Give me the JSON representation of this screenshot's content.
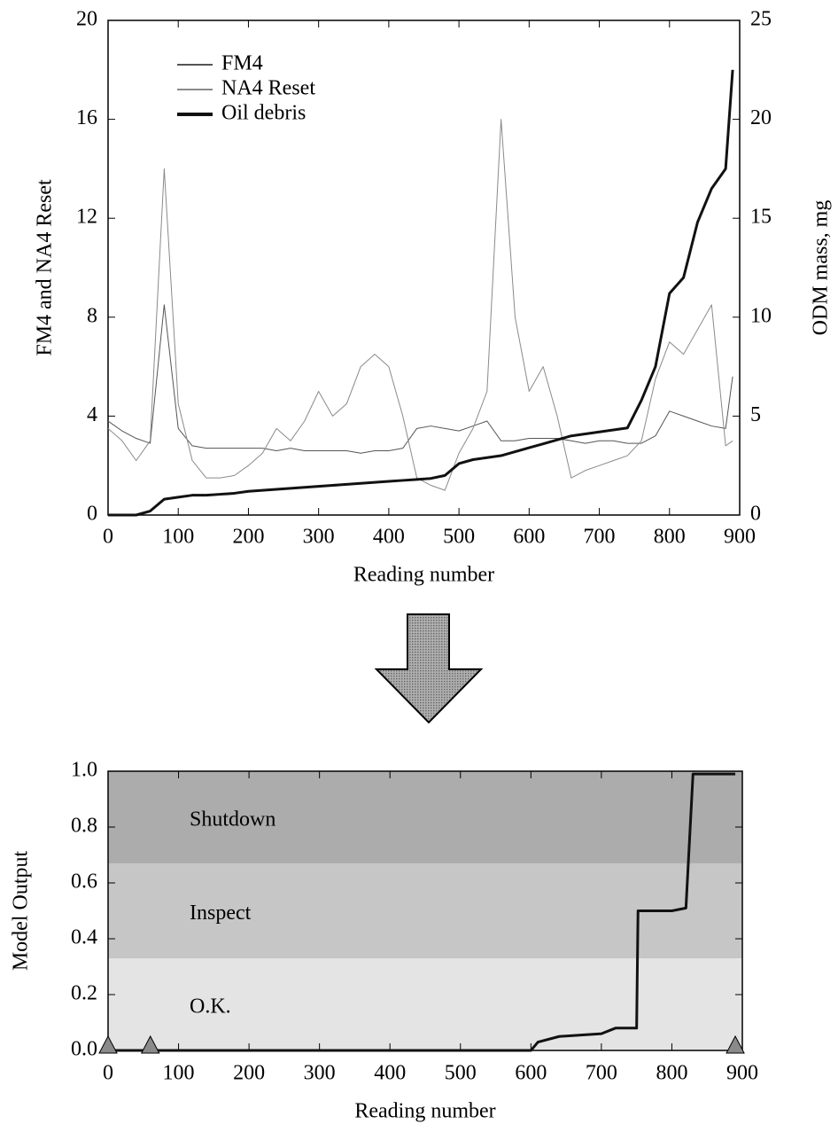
{
  "chart_data": [
    {
      "type": "line",
      "xlabel": "Reading number",
      "ylabel": "FM4 and NA4 Reset",
      "y2label": "ODM mass, mg",
      "x": [
        0,
        20,
        40,
        60,
        80,
        100,
        120,
        140,
        160,
        180,
        200,
        220,
        240,
        260,
        280,
        300,
        320,
        340,
        360,
        380,
        400,
        420,
        440,
        460,
        480,
        500,
        520,
        540,
        560,
        580,
        600,
        620,
        640,
        660,
        680,
        700,
        720,
        740,
        760,
        780,
        800,
        820,
        840,
        860,
        880,
        890
      ],
      "series": [
        {
          "name": "FM4",
          "color": "#555555",
          "width": 1,
          "values": [
            3.8,
            3.4,
            3.1,
            2.9,
            8.5,
            3.5,
            2.8,
            2.7,
            2.7,
            2.7,
            2.7,
            2.7,
            2.6,
            2.7,
            2.6,
            2.6,
            2.6,
            2.6,
            2.5,
            2.6,
            2.6,
            2.7,
            3.5,
            3.6,
            3.5,
            3.4,
            3.6,
            3.8,
            3.0,
            3.0,
            3.1,
            3.1,
            3.1,
            3.0,
            2.9,
            3.0,
            3.0,
            2.9,
            2.9,
            3.2,
            4.2,
            4.0,
            3.8,
            3.6,
            3.5,
            5.6
          ]
        },
        {
          "name": "NA4 Reset",
          "color": "#8a8a8a",
          "width": 1,
          "values": [
            3.5,
            3.0,
            2.2,
            3.0,
            14.0,
            4.5,
            2.2,
            1.5,
            1.5,
            1.6,
            2.0,
            2.5,
            3.5,
            3.0,
            3.8,
            5.0,
            4.0,
            4.5,
            6.0,
            6.5,
            6.0,
            4.0,
            1.5,
            1.2,
            1.0,
            2.5,
            3.5,
            5.0,
            16.0,
            8.0,
            5.0,
            6.0,
            4.0,
            1.5,
            1.8,
            2.0,
            2.2,
            2.4,
            3.0,
            5.5,
            7.0,
            6.5,
            7.5,
            8.5,
            2.8,
            3.0
          ]
        },
        {
          "name": "Oil debris",
          "color": "#111111",
          "width": 3,
          "axis": "y2",
          "values": [
            0,
            0,
            0,
            0.2,
            0.8,
            0.9,
            1.0,
            1.0,
            1.05,
            1.1,
            1.2,
            1.25,
            1.3,
            1.35,
            1.4,
            1.45,
            1.5,
            1.55,
            1.6,
            1.65,
            1.7,
            1.75,
            1.8,
            1.85,
            2.0,
            2.6,
            2.8,
            2.9,
            3.0,
            3.2,
            3.4,
            3.6,
            3.8,
            4.0,
            4.1,
            4.2,
            4.3,
            4.4,
            5.8,
            7.5,
            11.2,
            12.0,
            14.8,
            16.5,
            17.5,
            22.5
          ]
        }
      ],
      "xlim": [
        0,
        900
      ],
      "xticks": [
        0,
        100,
        200,
        300,
        400,
        500,
        600,
        700,
        800,
        900
      ],
      "ylim": [
        0,
        20
      ],
      "yticks": [
        0,
        4,
        8,
        12,
        16,
        20
      ],
      "y2lim": [
        0,
        25
      ],
      "y2ticks": [
        0,
        5,
        10,
        15,
        20,
        25
      ],
      "legend": "upper left",
      "grid": false
    },
    {
      "type": "line",
      "xlabel": "Reading number",
      "ylabel": "Model Output",
      "x": [
        0,
        600,
        610,
        640,
        700,
        720,
        750,
        752,
        800,
        820,
        830,
        890
      ],
      "values": [
        0,
        0,
        0.03,
        0.05,
        0.06,
        0.08,
        0.08,
        0.5,
        0.5,
        0.51,
        0.99,
        0.99
      ],
      "color": "#111111",
      "zones": [
        {
          "label": "O.K.",
          "from": 0,
          "to": 0.33,
          "color": "#e4e4e4"
        },
        {
          "label": "Inspect",
          "from": 0.33,
          "to": 0.67,
          "color": "#c6c6c6"
        },
        {
          "label": "Shutdown",
          "from": 0.67,
          "to": 1.0,
          "color": "#acacac"
        }
      ],
      "markers_x": [
        0,
        60,
        890
      ],
      "marker_color": "#8a8a8a",
      "xlim": [
        0,
        900
      ],
      "xticks": [
        0,
        100,
        200,
        300,
        400,
        500,
        600,
        700,
        800,
        900
      ],
      "ylim": [
        0,
        1.0
      ],
      "yticks": [
        {
          "value": 0,
          "label": "0.0"
        },
        0.2,
        0.4,
        0.6,
        0.8,
        {
          "value": 1.0,
          "label": "1.0"
        }
      ],
      "grid": false
    }
  ]
}
